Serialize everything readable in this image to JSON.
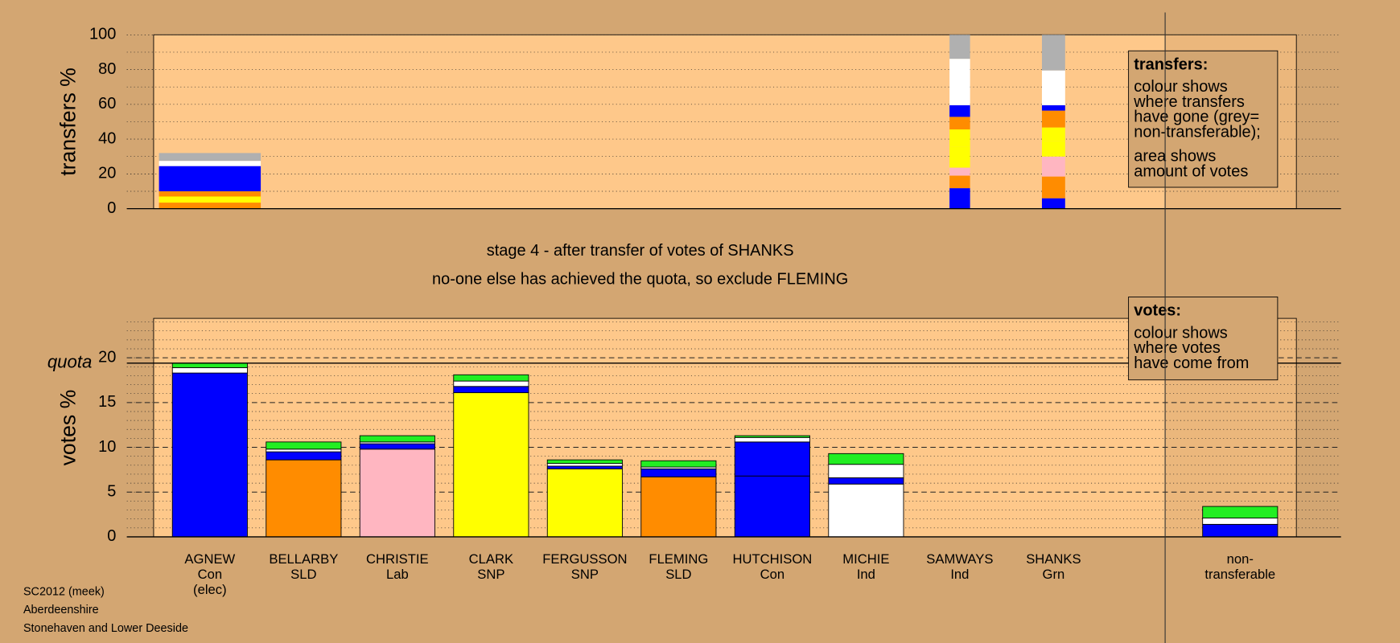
{
  "chart_data": [
    {
      "type": "bar",
      "stacked": true,
      "ylabel": "transfers %",
      "ylim": [
        0,
        100
      ],
      "yticks": [
        0,
        20,
        40,
        60,
        80,
        100
      ],
      "ygrid": [
        0,
        10,
        20,
        30,
        40,
        50,
        60,
        70,
        80,
        90,
        100
      ],
      "series": [
        {
          "color": "#0000ff",
          "values": [
            0,
            null,
            null,
            null,
            null,
            null,
            null,
            null,
            11.8,
            6
          ]
        },
        {
          "color": "#ff8c00",
          "values": [
            3.5,
            null,
            null,
            null,
            null,
            null,
            null,
            null,
            7.2,
            12.5
          ]
        },
        {
          "color": "#ffb6c1",
          "values": [
            0,
            null,
            null,
            null,
            null,
            null,
            null,
            null,
            4.6,
            11.5
          ]
        },
        {
          "color": "#ffff00",
          "values": [
            2,
            null,
            null,
            null,
            null,
            null,
            null,
            null,
            12,
            9
          ]
        },
        {
          "color": "#ffff00",
          "values": [
            1.5,
            null,
            null,
            null,
            null,
            null,
            null,
            null,
            10,
            7.7
          ]
        },
        {
          "color": "#ff8c00",
          "values": [
            3,
            null,
            null,
            null,
            null,
            null,
            null,
            null,
            7.2,
            9.7
          ]
        },
        {
          "color": "#0000ff",
          "values": [
            14.5,
            null,
            null,
            null,
            null,
            null,
            null,
            null,
            6.7,
            3.1
          ]
        },
        {
          "color": "#ffffff",
          "values": [
            3,
            null,
            null,
            null,
            null,
            null,
            null,
            null,
            26.7,
            20
          ]
        },
        {
          "color": "#b0b0b0",
          "values": [
            4.5,
            null,
            null,
            null,
            null,
            null,
            null,
            null,
            13.8,
            20.5
          ]
        }
      ],
      "note": {
        "heading": "transfers:",
        "lines": [
          "colour shows",
          "where transfers",
          "have gone (grey=",
          "non-transferable);",
          "area shows",
          "amount of votes"
        ]
      }
    },
    {
      "type": "bar",
      "stacked": true,
      "title": "stage 4 - after transfer of votes of SHANKS",
      "subtitle": "no-one else has achieved the quota, so exclude FLEMING",
      "ylabel": "votes %",
      "ylim": [
        0,
        24.4
      ],
      "yticks": [
        0,
        5,
        10,
        15,
        20
      ],
      "ygrid": [
        1,
        2,
        3,
        4,
        5,
        6,
        7,
        8,
        9,
        10,
        11,
        12,
        13,
        14,
        15,
        16,
        17,
        18,
        19,
        20,
        21,
        22,
        23,
        24
      ],
      "quota": 19.4,
      "quota_label": "quota",
      "categories": [
        [
          "AGNEW",
          "Con",
          "(elec)"
        ],
        [
          "BELLARBY",
          "SLD"
        ],
        [
          "CHRISTIE",
          "Lab"
        ],
        [
          "CLARK",
          "SNP"
        ],
        [
          "FERGUSSON",
          "SNP"
        ],
        [
          "FLEMING",
          "SLD"
        ],
        [
          "HUTCHISON",
          "Con"
        ],
        [
          "MICHIE",
          "Ind"
        ],
        [
          "SAMWAYS",
          "Ind"
        ],
        [
          "SHANKS",
          "Grn"
        ],
        [
          "non-",
          "transferable"
        ]
      ],
      "series": [
        {
          "colors": [
            "#0000ff",
            "#ff8c00",
            "#ffb6c1",
            "#ffff00",
            "#ffff00",
            "#ff8c00",
            "#0000ff",
            "#ffffff",
            "#ffffff",
            "#22ee22",
            "#b0b0b0"
          ],
          "values": [
            18.3,
            8.6,
            9.8,
            16.1,
            7.6,
            6.7,
            6.8,
            5.9,
            null,
            null,
            null
          ]
        },
        {
          "color": "#0000ff",
          "values": [
            null,
            0.9,
            0.6,
            0.7,
            0.3,
            0.9,
            3.8,
            0.7,
            null,
            null,
            1.4
          ]
        },
        {
          "color": "#ffffff",
          "values": [
            0.6,
            0.3,
            0.2,
            0.6,
            0.3,
            0.2,
            0.5,
            1.5,
            null,
            null,
            0.7
          ]
        },
        {
          "color": "#22ee22",
          "values": [
            0.5,
            0.8,
            0.7,
            0.7,
            0.4,
            0.7,
            0.2,
            1.2,
            null,
            null,
            1.3
          ]
        }
      ],
      "note": {
        "heading": "votes:",
        "lines": [
          "colour shows",
          "where votes",
          "have come from"
        ]
      },
      "footnotes": [
        "SC2012 (meek)",
        "Aberdeenshire",
        "Stonehaven and Lower Deeside"
      ]
    }
  ]
}
